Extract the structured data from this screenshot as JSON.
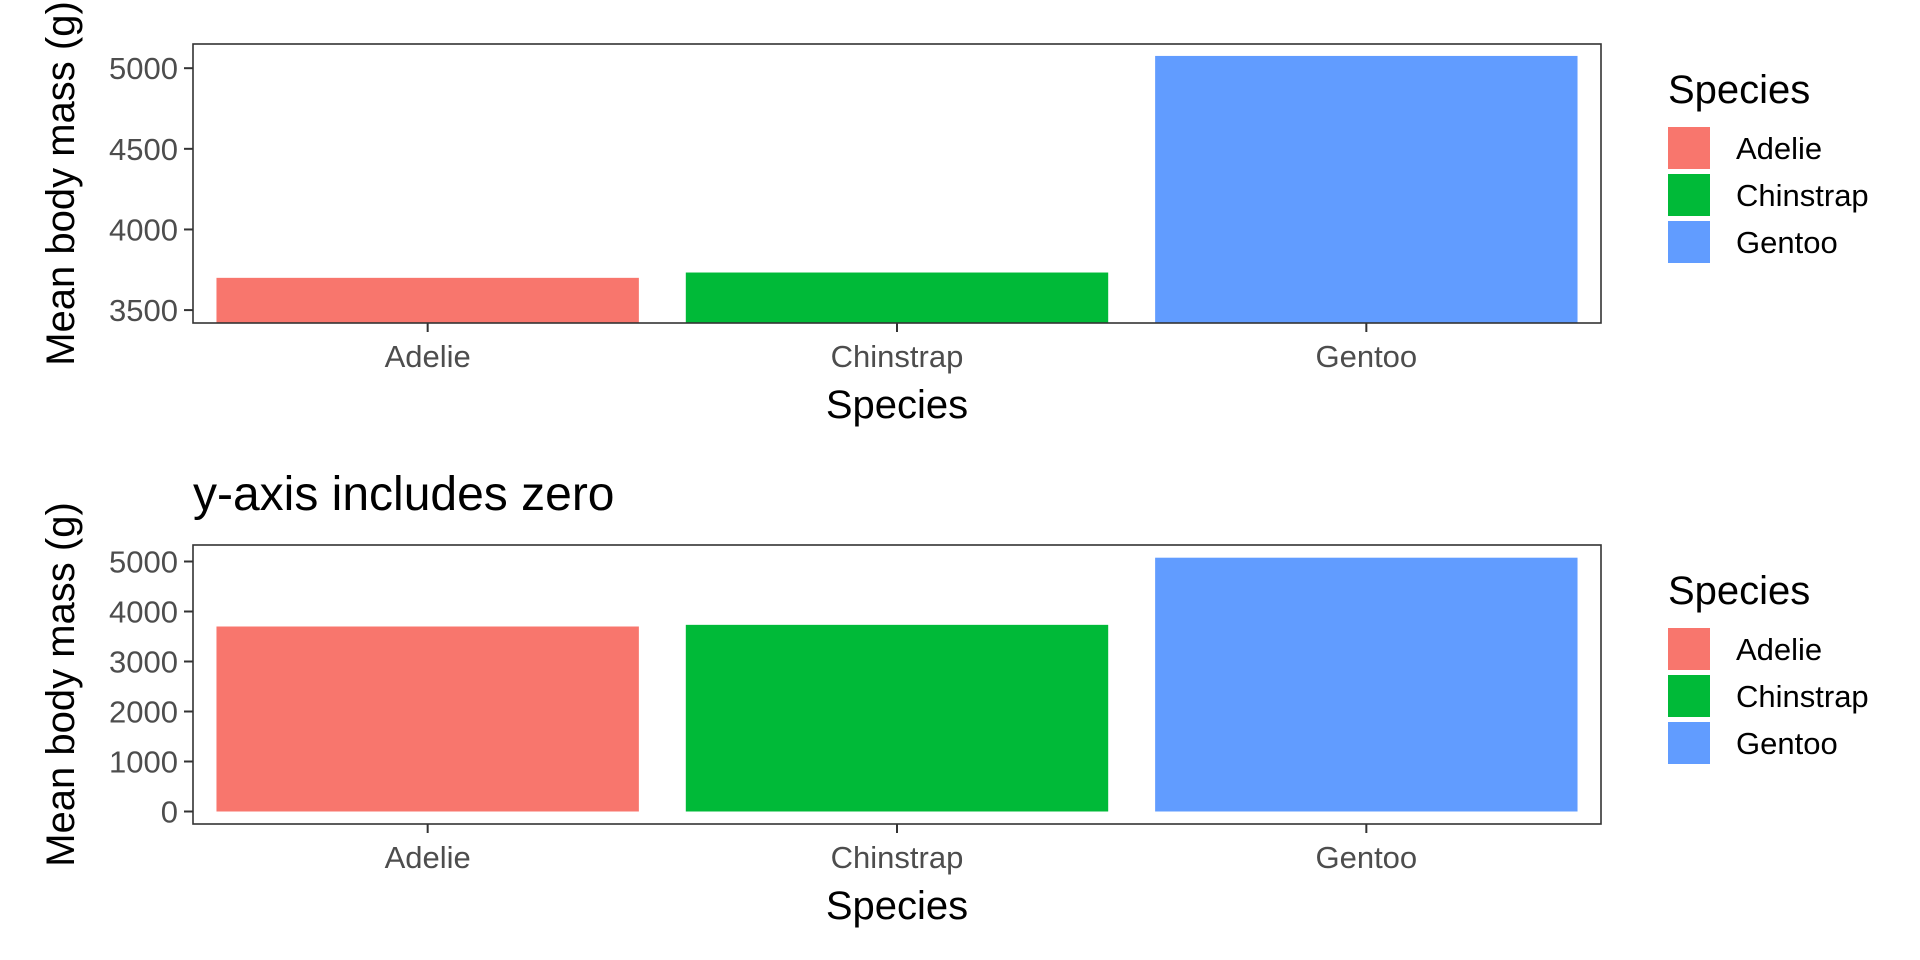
{
  "chart_data": [
    {
      "type": "bar",
      "title": "",
      "categories": [
        "Adelie",
        "Chinstrap",
        "Gentoo"
      ],
      "values": [
        3700,
        3733,
        5076
      ],
      "xlabel": "Species",
      "ylabel": "Mean body mass (g)",
      "ylim": [
        3420,
        5150
      ],
      "yticks": [
        3500,
        4000,
        4500,
        5000
      ],
      "bar_baseline": 3420,
      "grid": false,
      "legend": {
        "title": "Species",
        "placement": "right",
        "entries": [
          "Adelie",
          "Chinstrap",
          "Gentoo"
        ]
      },
      "colors": [
        "#F8766D",
        "#00BA38",
        "#619CFF"
      ]
    },
    {
      "type": "bar",
      "title": "y-axis includes zero",
      "categories": [
        "Adelie",
        "Chinstrap",
        "Gentoo"
      ],
      "values": [
        3700,
        3733,
        5076
      ],
      "xlabel": "Species",
      "ylabel": "Mean body mass (g)",
      "ylim": [
        -250,
        5330
      ],
      "yticks": [
        0,
        1000,
        2000,
        3000,
        4000,
        5000
      ],
      "bar_baseline": 0,
      "grid": false,
      "legend": {
        "title": "Species",
        "placement": "right",
        "entries": [
          "Adelie",
          "Chinstrap",
          "Gentoo"
        ]
      },
      "colors": [
        "#F8766D",
        "#00BA38",
        "#619CFF"
      ]
    }
  ]
}
